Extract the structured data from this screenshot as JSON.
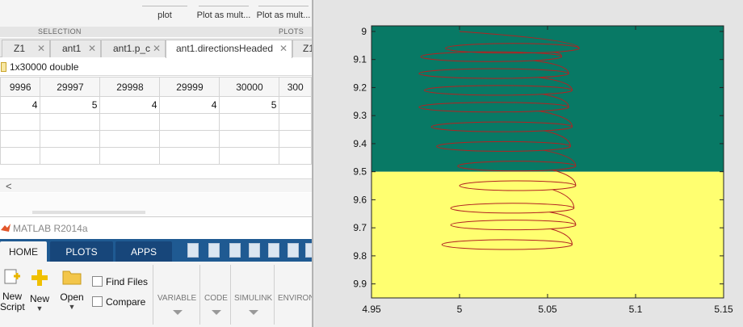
{
  "plot_gallery": {
    "buttons": [
      "plot",
      "Plot as mult...",
      "Plot as mult..."
    ],
    "sections": [
      "SELECTION",
      "PLOTS"
    ]
  },
  "document_tabs": [
    {
      "label": "Z1",
      "active": false
    },
    {
      "label": "ant1",
      "active": false
    },
    {
      "label": "ant1.p_c",
      "active": false
    },
    {
      "label": "ant1.directionsHeaded",
      "active": true
    },
    {
      "label": "Z1",
      "active": false
    }
  ],
  "variable_info": "1x30000 double",
  "grid": {
    "columns": [
      "9996",
      "29997",
      "29998",
      "29999",
      "30000",
      "300"
    ],
    "values": [
      "4",
      "5",
      "4",
      "4",
      "5",
      ""
    ]
  },
  "scroll_left_glyph": "<",
  "window": {
    "title": "MATLAB R2014a"
  },
  "ribbon": {
    "tabs": [
      {
        "label": "HOME",
        "active": true
      },
      {
        "label": "PLOTS",
        "active": false
      },
      {
        "label": "APPS",
        "active": false
      }
    ],
    "buttons": {
      "new_script": [
        "New",
        "Script"
      ],
      "new": "New",
      "open": "Open",
      "find_files": "Find Files",
      "compare": "Compare"
    },
    "groups": [
      "VARIABLE",
      "CODE",
      "SIMULINK",
      "ENVIRON"
    ]
  },
  "colors": {
    "upper_region": "#087965",
    "lower_region": "#ffff70",
    "curve": "#b22222",
    "ribbon_blue": "#1f5a92"
  },
  "chart_data": {
    "type": "line",
    "title": "",
    "xlabel": "",
    "ylabel": "",
    "xlim": [
      4.95,
      5.15
    ],
    "ylim": [
      9.95,
      8.98
    ],
    "y_reversed": true,
    "xticks": [
      "4.95",
      "5",
      "5.05",
      "5.1",
      "5.15"
    ],
    "yticks": [
      "9",
      "9.1",
      "9.2",
      "9.3",
      "9.4",
      "9.5",
      "9.6",
      "9.7",
      "9.8",
      "9.9"
    ],
    "background_regions": [
      {
        "y_from": 8.98,
        "y_to": 9.5,
        "color": "#087965"
      },
      {
        "y_from": 9.5,
        "y_to": 9.95,
        "color": "#ffff70"
      }
    ],
    "series": [
      {
        "loops": [
          {
            "y": 9.06,
            "x_left": 4.992,
            "x_right": 5.068
          },
          {
            "y": 9.09,
            "x_left": 4.978,
            "x_right": 5.058
          },
          {
            "y": 9.15,
            "x_left": 4.977,
            "x_right": 5.062
          },
          {
            "y": 9.21,
            "x_left": 4.98,
            "x_right": 5.064
          },
          {
            "y": 9.27,
            "x_left": 4.977,
            "x_right": 5.062
          },
          {
            "y": 9.34,
            "x_left": 4.984,
            "x_right": 5.064
          },
          {
            "y": 9.41,
            "x_left": 4.987,
            "x_right": 5.063
          },
          {
            "y": 9.48,
            "x_left": 4.999,
            "x_right": 5.066
          },
          {
            "y": 9.55,
            "x_left": 5.0,
            "x_right": 5.066
          },
          {
            "y": 9.63,
            "x_left": 4.995,
            "x_right": 5.065
          },
          {
            "y": 9.69,
            "x_left": 4.995,
            "x_right": 5.066
          },
          {
            "y": 9.76,
            "x_left": 4.99,
            "x_right": 5.064
          }
        ],
        "start": {
          "x": 5.0,
          "y": 9.0
        }
      }
    ]
  }
}
